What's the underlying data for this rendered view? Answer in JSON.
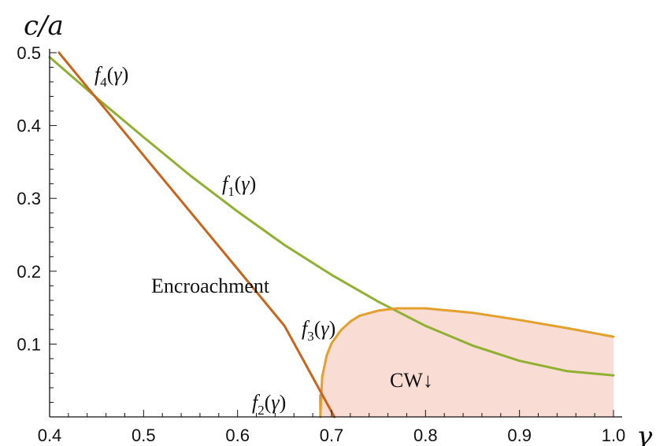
{
  "chart_data": {
    "type": "line",
    "xlabel": "γ",
    "ylabel": "c/a",
    "xlim": [
      0.4,
      1.0
    ],
    "ylim": [
      0,
      0.5
    ],
    "x_ticks": [
      "0.4",
      "0.5",
      "0.6",
      "0.7",
      "0.8",
      "0.9",
      "1.0"
    ],
    "y_ticks": [
      "0.1",
      "0.2",
      "0.3",
      "0.4",
      "0.5"
    ],
    "grid": false,
    "colors": {
      "f1": "#8fb031",
      "f2": "#5b87c8",
      "f3": "#e3a02c",
      "f4": "#c8651c",
      "region_fill": "#f9ddd4"
    },
    "series": [
      {
        "name": "f1(γ)",
        "x": [
          0.4,
          0.45,
          0.5,
          0.55,
          0.6,
          0.65,
          0.7,
          0.75,
          0.8,
          0.85,
          0.9,
          0.95,
          1.0
        ],
        "y": [
          0.494,
          0.438,
          0.384,
          0.331,
          0.282,
          0.236,
          0.195,
          0.158,
          0.125,
          0.098,
          0.077,
          0.063,
          0.057
        ]
      },
      {
        "name": "f2(γ)",
        "x": [
          0.688,
          0.688
        ],
        "y": [
          0.0,
          0.03
        ]
      },
      {
        "name": "f3(γ)",
        "x": [
          0.688,
          0.69,
          0.695,
          0.7,
          0.71,
          0.72,
          0.73,
          0.75,
          0.77,
          0.8,
          0.85,
          0.9,
          0.95,
          1.0
        ],
        "y": [
          0.0,
          0.055,
          0.085,
          0.101,
          0.119,
          0.131,
          0.139,
          0.146,
          0.149,
          0.149,
          0.143,
          0.133,
          0.122,
          0.11
        ]
      },
      {
        "name": "f4(γ)",
        "x": [
          0.41,
          0.45,
          0.5,
          0.55,
          0.6,
          0.65,
          0.703
        ],
        "y": [
          0.5,
          0.437,
          0.359,
          0.281,
          0.203,
          0.125,
          0.0
        ]
      }
    ],
    "annotations": {
      "f1": "f1(γ)",
      "f2": "f2(γ)",
      "f3": "f3(γ)",
      "f4": "f4(γ)",
      "encroachment": "Encroachment",
      "cw": "CW↓"
    }
  }
}
